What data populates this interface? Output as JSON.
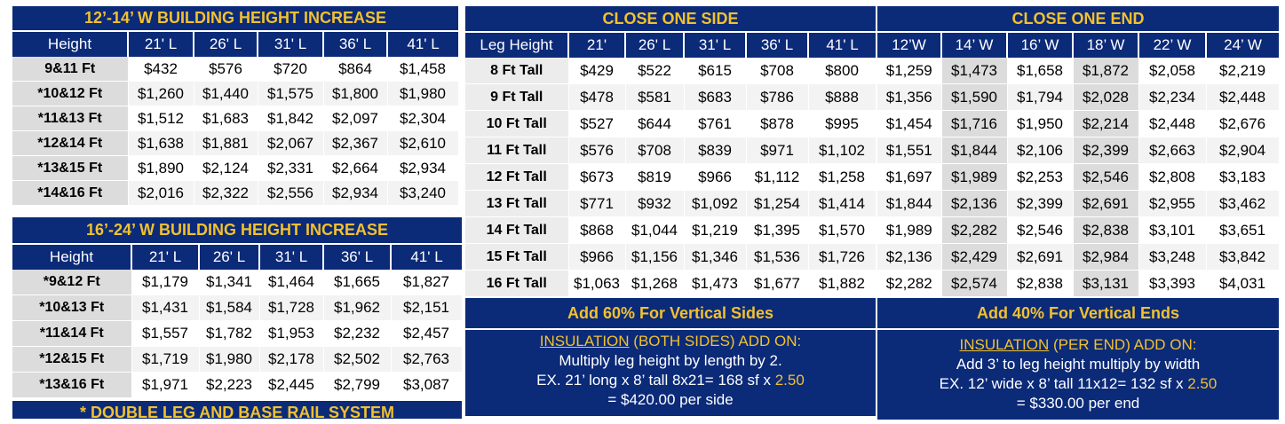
{
  "table_a": {
    "title": "12’-14’ W BUILDING HEIGHT INCREASE",
    "headers": [
      "Height",
      "21' L",
      "26' L",
      "31' L",
      "36' L",
      "41' L"
    ],
    "rows": [
      {
        "label": "9&11 Ft",
        "values": [
          "$432",
          "$576",
          "$720",
          "$864",
          "$1,458"
        ]
      },
      {
        "label": "*10&12 Ft",
        "values": [
          "$1,260",
          "$1,440",
          "$1,575",
          "$1,800",
          "$1,980"
        ]
      },
      {
        "label": "*11&13 Ft",
        "values": [
          "$1,512",
          "$1,683",
          "$1,842",
          "$2,097",
          "$2,304"
        ]
      },
      {
        "label": "*12&14 Ft",
        "values": [
          "$1,638",
          "$1,881",
          "$2,067",
          "$2,367",
          "$2,610"
        ]
      },
      {
        "label": "*13&15 Ft",
        "values": [
          "$1,890",
          "$2,124",
          "$2,331",
          "$2,664",
          "$2,934"
        ]
      },
      {
        "label": "*14&16 Ft",
        "values": [
          "$2,016",
          "$2,322",
          "$2,556",
          "$2,934",
          "$3,240"
        ]
      }
    ]
  },
  "table_b": {
    "title": "16’-24’ W BUILDING HEIGHT INCREASE",
    "headers": [
      "Height",
      "21' L",
      "26' L",
      "31' L",
      "36' L",
      "41' L"
    ],
    "rows": [
      {
        "label": "*9&12 Ft",
        "values": [
          "$1,179",
          "$1,341",
          "$1,464",
          "$1,665",
          "$1,827"
        ]
      },
      {
        "label": "*10&13 Ft",
        "values": [
          "$1,431",
          "$1,584",
          "$1,728",
          "$1,962",
          "$2,151"
        ]
      },
      {
        "label": "*11&14 Ft",
        "values": [
          "$1,557",
          "$1,782",
          "$1,953",
          "$2,232",
          "$2,457"
        ]
      },
      {
        "label": "*12&15 Ft",
        "values": [
          "$1,719",
          "$1,980",
          "$2,178",
          "$2,502",
          "$2,763"
        ]
      },
      {
        "label": "*13&16 Ft",
        "values": [
          "$1,971",
          "$2,223",
          "$2,445",
          "$2,799",
          "$3,087"
        ]
      }
    ],
    "footer": "* DOUBLE LEG AND BASE RAIL SYSTEM"
  },
  "close_side": {
    "title": "CLOSE ONE SIDE",
    "headers": [
      "Leg Height",
      "21'",
      "26' L",
      "31' L",
      "36' L",
      "41' L"
    ],
    "rows": [
      {
        "label": "8 Ft Tall",
        "values": [
          "$429",
          "$522",
          "$615",
          "$708",
          "$800"
        ]
      },
      {
        "label": "9 Ft Tall",
        "values": [
          "$478",
          "$581",
          "$683",
          "$786",
          "$888"
        ]
      },
      {
        "label": "10 Ft Tall",
        "values": [
          "$527",
          "$644",
          "$761",
          "$878",
          "$995"
        ]
      },
      {
        "label": "11 Ft Tall",
        "values": [
          "$576",
          "$708",
          "$839",
          "$971",
          "$1,102"
        ]
      },
      {
        "label": "12 Ft Tall",
        "values": [
          "$673",
          "$819",
          "$966",
          "$1,112",
          "$1,258"
        ]
      },
      {
        "label": "13 Ft Tall",
        "values": [
          "$771",
          "$932",
          "$1,092",
          "$1,254",
          "$1,414"
        ]
      },
      {
        "label": "14 Ft Tall",
        "values": [
          "$868",
          "$1,044",
          "$1,219",
          "$1,395",
          "$1,570"
        ]
      },
      {
        "label": "15 Ft Tall",
        "values": [
          "$966",
          "$1,156",
          "$1,346",
          "$1,536",
          "$1,726"
        ]
      },
      {
        "label": "16 Ft Tall",
        "values": [
          "$1,063",
          "$1,268",
          "$1,473",
          "$1,677",
          "$1,882"
        ]
      }
    ],
    "notice": "Add 60% For Vertical Sides",
    "insulation": {
      "head_u": "INSULATION",
      "head_rest": " (BOTH SIDES) ADD ON:",
      "line1": "Multiply leg height by length by 2.",
      "line2": "EX. 21’ long x 8’ tall 8x21= 168 sf x ",
      "rate": "2.50",
      "line3": "= $420.00 per side"
    }
  },
  "close_end": {
    "title": "CLOSE ONE END",
    "headers": [
      "12’W",
      "14’ W",
      "16’ W",
      "18’ W",
      "22’ W",
      "24’ W"
    ],
    "rows": [
      [
        "$1,259",
        "$1,473",
        "$1,658",
        "$1,872",
        "$2,058",
        "$2,219"
      ],
      [
        "$1,356",
        "$1,590",
        "$1,794",
        "$2,028",
        "$2,234",
        "$2,448"
      ],
      [
        "$1,454",
        "$1,716",
        "$1,950",
        "$2,214",
        "$2,448",
        "$2,676"
      ],
      [
        "$1,551",
        "$1,844",
        "$2,106",
        "$2,399",
        "$2,663",
        "$2,904"
      ],
      [
        "$1,697",
        "$1,989",
        "$2,253",
        "$2,546",
        "$2,808",
        "$3,183"
      ],
      [
        "$1,844",
        "$2,136",
        "$2,399",
        "$2,691",
        "$2,955",
        "$3,462"
      ],
      [
        "$1,989",
        "$2,282",
        "$2,546",
        "$2,838",
        "$3,101",
        "$3,651"
      ],
      [
        "$2,136",
        "$2,429",
        "$2,691",
        "$2,984",
        "$3,248",
        "$3,842"
      ],
      [
        "$2,282",
        "$2,574",
        "$2,838",
        "$3,131",
        "$3,393",
        "$4,031"
      ]
    ],
    "notice": "Add 40% For Vertical Ends",
    "insulation": {
      "head_u": "INSULATION",
      "head_rest": " (PER END) ADD ON:",
      "line1": "Add 3’ to leg height multiply by width",
      "line2": "EX. 12’ wide x 8’ tall 11x12= 132 sf x ",
      "rate": "2.50",
      "line3": "= $330.00 per end"
    }
  }
}
